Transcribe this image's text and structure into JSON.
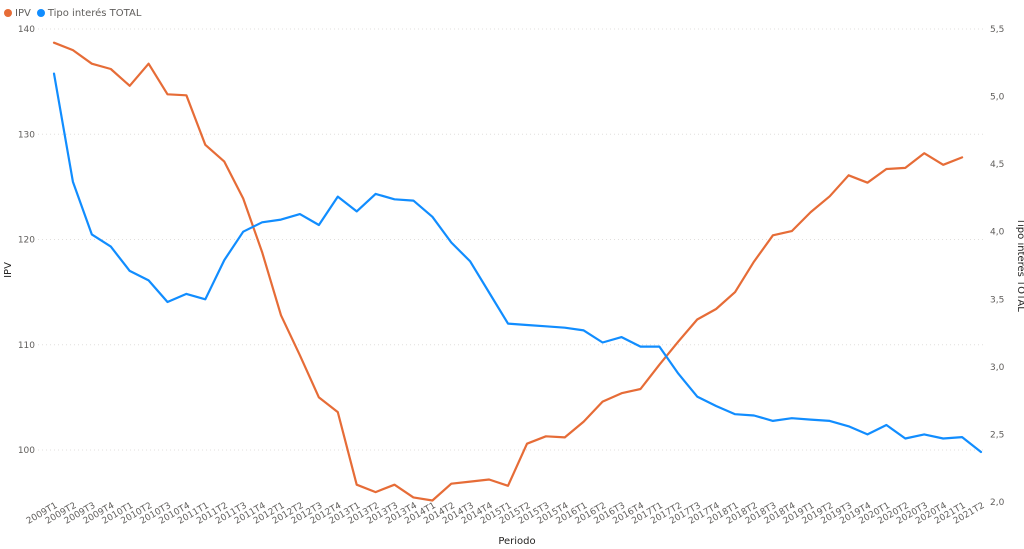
{
  "chart_data": {
    "type": "line",
    "xlabel": "Periodo",
    "ylabel_left": "IPV",
    "ylabel_right": "Tipo interés TOTAL",
    "legend_position": "top-left",
    "grid": true,
    "y_left_lim": [
      96,
      140
    ],
    "y_left_ticks": [
      100,
      110,
      120,
      130,
      140
    ],
    "y_right_lim": [
      2.0,
      5.5
    ],
    "y_right_ticks": [
      "2,0",
      "2,5",
      "3,0",
      "3,5",
      "4,0",
      "4,5",
      "5,0",
      "5,5"
    ],
    "y_right_tick_values": [
      2.0,
      2.5,
      3.0,
      3.5,
      4.0,
      4.5,
      5.0,
      5.5
    ],
    "categories": [
      "2009T1",
      "2009T2",
      "2009T3",
      "2009T4",
      "2010T1",
      "2010T2",
      "2010T3",
      "2010T4",
      "2011T1",
      "2011T2",
      "2011T3",
      "2011T4",
      "2012T1",
      "2012T2",
      "2012T3",
      "2012T4",
      "2013T1",
      "2013T2",
      "2013T3",
      "2013T4",
      "2014T1",
      "2014T2",
      "2014T3",
      "2014T4",
      "2015T1",
      "2015T2",
      "2015T3",
      "2015T4",
      "2016T1",
      "2016T2",
      "2016T3",
      "2016T4",
      "2017T1",
      "2017T2",
      "2017T3",
      "2017T4",
      "2018T1",
      "2018T2",
      "2018T3",
      "2018T4",
      "2019T1",
      "2019T2",
      "2019T3",
      "2019T4",
      "2020T1",
      "2020T2",
      "2020T3",
      "2020T4",
      "2021T1",
      "2021T2"
    ],
    "series": [
      {
        "name": "IPV",
        "axis": "left",
        "color": "#e66c37",
        "values": [
          138.7,
          138.0,
          136.7,
          136.2,
          134.6,
          136.7,
          133.8,
          133.7,
          129.0,
          127.4,
          123.9,
          118.8,
          112.8,
          109.0,
          105.0,
          103.6,
          96.7,
          96.0,
          96.7,
          95.5,
          95.2,
          96.8,
          97.0,
          97.2,
          96.6,
          100.6,
          101.3,
          101.2,
          102.7,
          104.6,
          105.4,
          105.8,
          108.1,
          110.3,
          112.4,
          113.4,
          115.0,
          117.9,
          120.4,
          120.8,
          122.6,
          124.1,
          126.1,
          125.4,
          126.7,
          126.8,
          128.2,
          127.1,
          127.8,
          null
        ]
      },
      {
        "name": "Tipo interés TOTAL",
        "axis": "right",
        "color": "#118dff",
        "values": [
          5.17,
          4.37,
          3.98,
          3.89,
          3.71,
          3.64,
          3.48,
          3.54,
          3.5,
          3.79,
          4.0,
          4.07,
          4.09,
          4.13,
          4.05,
          4.26,
          4.15,
          4.28,
          4.24,
          4.23,
          4.11,
          3.92,
          3.78,
          3.55,
          3.32,
          3.31,
          3.3,
          3.29,
          3.27,
          3.18,
          3.22,
          3.15,
          3.15,
          2.95,
          2.78,
          2.71,
          2.65,
          2.64,
          2.6,
          2.62,
          2.61,
          2.6,
          2.56,
          2.5,
          2.57,
          2.47,
          2.5,
          2.47,
          2.48,
          2.37
        ]
      }
    ]
  }
}
